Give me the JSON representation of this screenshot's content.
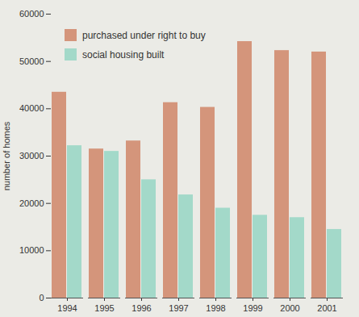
{
  "chart_data": {
    "type": "bar",
    "y_label": "number of homes",
    "categories": [
      "1994",
      "1995",
      "1996",
      "1997",
      "1998",
      "1999",
      "2000",
      "2001"
    ],
    "series": [
      {
        "name": "purchased under right to buy",
        "color": "#d4957b",
        "values": [
          43500,
          31500,
          33200,
          41300,
          40300,
          54200,
          52300,
          52000
        ]
      },
      {
        "name": "social housing built",
        "color": "#a3d9c9",
        "values": [
          32200,
          31000,
          25000,
          21800,
          19000,
          17500,
          17000,
          14500
        ]
      }
    ],
    "ylim": [
      0,
      60000
    ],
    "yticks": [
      0,
      10000,
      20000,
      30000,
      40000,
      50000,
      60000
    ],
    "grid": false,
    "legend": "top-left"
  }
}
